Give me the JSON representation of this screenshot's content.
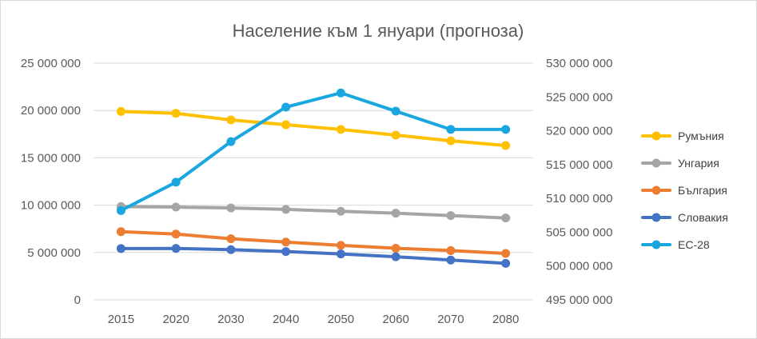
{
  "chart_data": {
    "type": "line",
    "title": "Население към 1 януари (прогноза)",
    "xlabel": "",
    "ylabel": "",
    "categories": [
      "2015",
      "2020",
      "2030",
      "2040",
      "2050",
      "2060",
      "2070",
      "2080"
    ],
    "y_left": {
      "range": [
        0,
        25000000
      ],
      "ticks": [
        0,
        5000000,
        10000000,
        15000000,
        20000000,
        25000000
      ],
      "tick_labels": [
        "0",
        "5 000 000",
        "10 000 000",
        "15 000 000",
        "20 000 000",
        "25 000 000"
      ]
    },
    "y_right": {
      "range": [
        495000000,
        530000000
      ],
      "ticks": [
        495000000,
        500000000,
        505000000,
        510000000,
        515000000,
        520000000,
        525000000,
        530000000
      ],
      "tick_labels": [
        "495 000 000",
        "500 000 000",
        "505 000 000",
        "510 000 000",
        "515 000 000",
        "520 000 000",
        "525 000 000",
        "530 000 000"
      ]
    },
    "grid": true,
    "legend_position": "right",
    "series": [
      {
        "name": "Румъния",
        "axis": "left",
        "color": "#ffc000",
        "values": [
          19900000,
          19700000,
          19000000,
          18500000,
          18000000,
          17400000,
          16800000,
          16300000
        ]
      },
      {
        "name": "Унгария",
        "axis": "left",
        "color": "#a5a5a5",
        "values": [
          9850000,
          9800000,
          9700000,
          9550000,
          9350000,
          9150000,
          8900000,
          8650000
        ]
      },
      {
        "name": "България",
        "axis": "left",
        "color": "#ed7d31",
        "values": [
          7200000,
          6950000,
          6450000,
          6100000,
          5750000,
          5450000,
          5200000,
          4900000
        ]
      },
      {
        "name": "Словакия",
        "axis": "left",
        "color": "#4472c4",
        "values": [
          5420000,
          5430000,
          5300000,
          5100000,
          4850000,
          4550000,
          4200000,
          3850000
        ]
      },
      {
        "name": "ЕС-28",
        "axis": "right",
        "color": "#1aa7e0",
        "values": [
          508200000,
          512400000,
          518400000,
          523500000,
          525600000,
          522900000,
          520200000,
          520200000
        ]
      }
    ]
  }
}
